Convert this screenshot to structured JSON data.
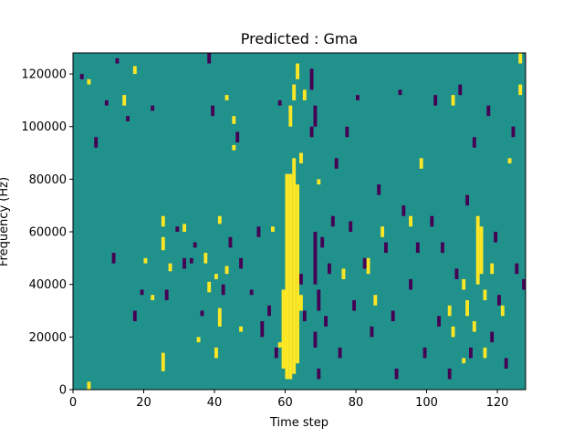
{
  "chart_data": {
    "type": "heatmap",
    "title": "Predicted : Gma",
    "xlabel": "Time step",
    "ylabel": "Frequency (Hz)",
    "xlim": [
      0,
      128
    ],
    "ylim": [
      0,
      128000
    ],
    "x_ticks": [
      "0",
      "20",
      "40",
      "60",
      "80",
      "100",
      "120"
    ],
    "y_ticks": [
      "0",
      "20000",
      "40000",
      "60000",
      "80000",
      "100000",
      "120000"
    ],
    "colormap": {
      "background": "#21918c",
      "high": "#fde725",
      "low": "#440154"
    },
    "background_value": "mid",
    "cells_yellow": [
      [
        4,
        116000,
        118000
      ],
      [
        4,
        0,
        3000
      ],
      [
        14,
        108000,
        112000
      ],
      [
        17,
        120000,
        123000
      ],
      [
        20,
        48000,
        50000
      ],
      [
        22,
        34000,
        36000
      ],
      [
        25,
        62000,
        66000
      ],
      [
        25,
        53000,
        58000
      ],
      [
        25,
        7000,
        14000
      ],
      [
        27,
        45000,
        48000
      ],
      [
        31,
        60000,
        63000
      ],
      [
        35,
        18000,
        20000
      ],
      [
        37,
        48000,
        52000
      ],
      [
        38,
        37000,
        41000
      ],
      [
        40,
        12000,
        16000
      ],
      [
        40,
        42000,
        44000
      ],
      [
        41,
        24000,
        31000
      ],
      [
        41,
        63000,
        66000
      ],
      [
        43,
        110000,
        112000
      ],
      [
        43,
        44000,
        47000
      ],
      [
        45,
        91000,
        93000
      ],
      [
        45,
        101000,
        104000
      ],
      [
        47,
        22000,
        24000
      ],
      [
        56,
        60000,
        62000
      ],
      [
        58,
        16000,
        18000
      ],
      [
        59,
        8000,
        38000
      ],
      [
        60,
        4000,
        82000
      ],
      [
        61,
        4000,
        82000
      ],
      [
        62,
        6000,
        88000
      ],
      [
        63,
        10000,
        78000
      ],
      [
        61,
        100000,
        108000
      ],
      [
        62,
        110000,
        116000
      ],
      [
        63,
        118000,
        124000
      ],
      [
        64,
        86000,
        90000
      ],
      [
        64,
        30000,
        36000
      ],
      [
        65,
        110000,
        114000
      ],
      [
        69,
        78000,
        80000
      ],
      [
        76,
        42000,
        46000
      ],
      [
        83,
        44000,
        50000
      ],
      [
        85,
        32000,
        36000
      ],
      [
        87,
        58000,
        62000
      ],
      [
        95,
        62000,
        66000
      ],
      [
        98,
        84000,
        88000
      ],
      [
        106,
        28000,
        32000
      ],
      [
        107,
        20000,
        24000
      ],
      [
        107,
        108000,
        112000
      ],
      [
        110,
        10000,
        12000
      ],
      [
        110,
        38000,
        42000
      ],
      [
        111,
        28000,
        34000
      ],
      [
        113,
        22000,
        26000
      ],
      [
        114,
        40000,
        66000
      ],
      [
        115,
        44000,
        62000
      ],
      [
        116,
        12000,
        16000
      ],
      [
        116,
        34000,
        38000
      ],
      [
        118,
        44000,
        48000
      ],
      [
        121,
        28000,
        32000
      ],
      [
        123,
        86000,
        88000
      ],
      [
        126,
        112000,
        116000
      ],
      [
        126,
        124000,
        128000
      ]
    ],
    "cells_purple": [
      [
        2,
        118000,
        120000
      ],
      [
        6,
        92000,
        96000
      ],
      [
        9,
        108000,
        110000
      ],
      [
        11,
        48000,
        52000
      ],
      [
        12,
        124000,
        126000
      ],
      [
        15,
        102000,
        104000
      ],
      [
        17,
        26000,
        30000
      ],
      [
        19,
        36000,
        38000
      ],
      [
        22,
        106000,
        108000
      ],
      [
        26,
        34000,
        38000
      ],
      [
        29,
        60000,
        62000
      ],
      [
        31,
        46000,
        50000
      ],
      [
        33,
        48000,
        50000
      ],
      [
        34,
        54000,
        56000
      ],
      [
        36,
        28000,
        30000
      ],
      [
        38,
        124000,
        128000
      ],
      [
        39,
        104000,
        108000
      ],
      [
        42,
        36000,
        40000
      ],
      [
        44,
        54000,
        58000
      ],
      [
        46,
        94000,
        98000
      ],
      [
        47,
        46000,
        50000
      ],
      [
        50,
        36000,
        38000
      ],
      [
        52,
        58000,
        62000
      ],
      [
        53,
        20000,
        26000
      ],
      [
        55,
        28000,
        32000
      ],
      [
        57,
        12000,
        16000
      ],
      [
        58,
        108000,
        110000
      ],
      [
        64,
        40000,
        44000
      ],
      [
        65,
        26000,
        30000
      ],
      [
        67,
        114000,
        122000
      ],
      [
        67,
        96000,
        100000
      ],
      [
        68,
        100000,
        108000
      ],
      [
        68,
        40000,
        60000
      ],
      [
        68,
        16000,
        22000
      ],
      [
        69,
        4000,
        8000
      ],
      [
        69,
        30000,
        38000
      ],
      [
        70,
        54000,
        58000
      ],
      [
        71,
        24000,
        28000
      ],
      [
        72,
        44000,
        48000
      ],
      [
        73,
        62000,
        66000
      ],
      [
        74,
        84000,
        88000
      ],
      [
        75,
        12000,
        16000
      ],
      [
        77,
        96000,
        100000
      ],
      [
        78,
        60000,
        64000
      ],
      [
        79,
        30000,
        34000
      ],
      [
        80,
        110000,
        112000
      ],
      [
        82,
        46000,
        50000
      ],
      [
        84,
        20000,
        24000
      ],
      [
        86,
        74000,
        78000
      ],
      [
        88,
        52000,
        56000
      ],
      [
        90,
        26000,
        30000
      ],
      [
        91,
        4000,
        8000
      ],
      [
        92,
        112000,
        114000
      ],
      [
        93,
        66000,
        70000
      ],
      [
        95,
        38000,
        42000
      ],
      [
        97,
        52000,
        56000
      ],
      [
        99,
        12000,
        16000
      ],
      [
        101,
        62000,
        66000
      ],
      [
        102,
        108000,
        112000
      ],
      [
        103,
        24000,
        28000
      ],
      [
        104,
        52000,
        56000
      ],
      [
        106,
        4000,
        8000
      ],
      [
        108,
        42000,
        46000
      ],
      [
        109,
        112000,
        116000
      ],
      [
        111,
        70000,
        74000
      ],
      [
        112,
        12000,
        16000
      ],
      [
        113,
        92000,
        96000
      ],
      [
        117,
        104000,
        108000
      ],
      [
        118,
        18000,
        22000
      ],
      [
        119,
        56000,
        60000
      ],
      [
        120,
        32000,
        36000
      ],
      [
        122,
        8000,
        12000
      ],
      [
        124,
        96000,
        100000
      ],
      [
        125,
        44000,
        48000
      ],
      [
        127,
        38000,
        42000
      ]
    ]
  }
}
